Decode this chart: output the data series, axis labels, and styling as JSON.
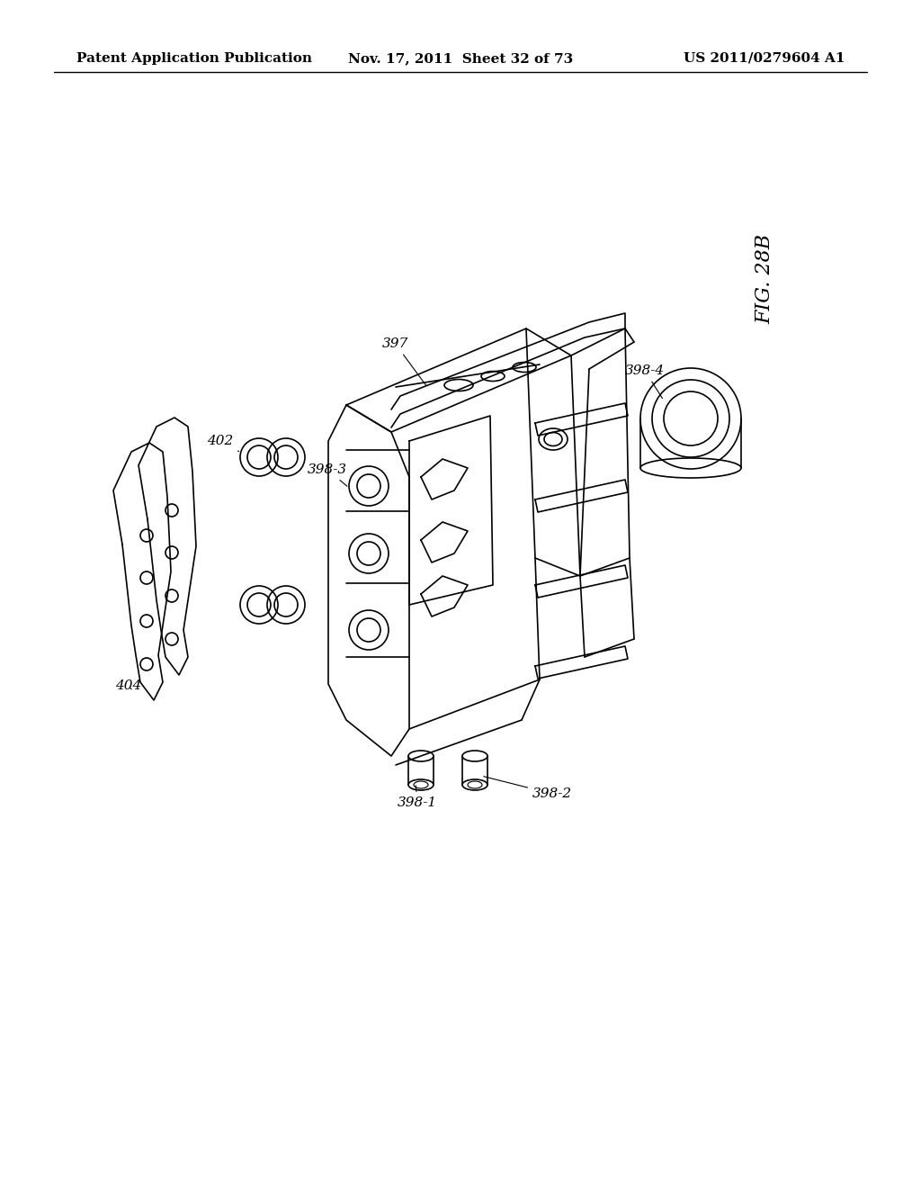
{
  "background_color": "#ffffff",
  "header_left": "Patent Application Publication",
  "header_mid": "Nov. 17, 2011  Sheet 32 of 73",
  "header_right": "US 2011/0279604 A1",
  "figure_label": "FIG. 28B",
  "line_color": "#000000",
  "line_width": 1.2,
  "header_fontsize": 11,
  "label_fontsize": 11,
  "fig_label_fontsize": 16
}
